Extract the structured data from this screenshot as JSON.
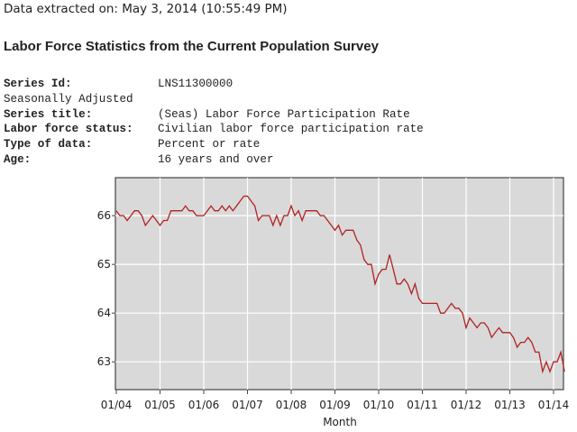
{
  "header": {
    "extracted": "Data extracted on: May 3, 2014 (10:55:49 PM)",
    "title": "Labor Force Statistics from the Current Population Survey"
  },
  "meta": {
    "rows": [
      {
        "label": "Series Id:",
        "value": "LNS11300000"
      },
      {
        "label": "Seasonally Adjusted",
        "value": ""
      },
      {
        "label": "Series title:",
        "value": "(Seas) Labor Force Participation Rate"
      },
      {
        "label": "Labor force status:",
        "value": "Civilian labor force participation rate"
      },
      {
        "label": "Type of data:",
        "value": "Percent or rate"
      },
      {
        "label": "Age:",
        "value": "16 years and over"
      }
    ]
  },
  "chart_data": {
    "type": "line",
    "xlabel": "Month",
    "ylabel": "",
    "x_start": "01/04",
    "x_end": "04/14",
    "x_ticks": [
      "01/04",
      "01/05",
      "01/06",
      "01/07",
      "01/08",
      "01/09",
      "01/10",
      "01/11",
      "01/12",
      "01/13",
      "01/14"
    ],
    "y_ticks": [
      66,
      65,
      64,
      63
    ],
    "ylim": [
      62.43,
      66.78
    ],
    "grid": true,
    "line_color": "#b22222",
    "background": "#d9d9d9",
    "xlabel_color": "#1f4e9c",
    "values": [
      66.1,
      66.0,
      66.0,
      65.9,
      66.0,
      66.1,
      66.1,
      66.0,
      65.8,
      65.9,
      66.0,
      65.9,
      65.8,
      65.9,
      65.9,
      66.1,
      66.1,
      66.1,
      66.1,
      66.2,
      66.1,
      66.1,
      66.0,
      66.0,
      66.0,
      66.1,
      66.2,
      66.1,
      66.1,
      66.2,
      66.1,
      66.2,
      66.1,
      66.2,
      66.3,
      66.4,
      66.4,
      66.3,
      66.2,
      65.9,
      66.0,
      66.0,
      66.0,
      65.8,
      66.0,
      65.8,
      66.0,
      66.0,
      66.2,
      66.0,
      66.1,
      65.9,
      66.1,
      66.1,
      66.1,
      66.1,
      66.0,
      66.0,
      65.9,
      65.8,
      65.7,
      65.8,
      65.6,
      65.7,
      65.7,
      65.7,
      65.5,
      65.4,
      65.1,
      65.0,
      65.0,
      64.6,
      64.8,
      64.9,
      64.9,
      65.2,
      64.9,
      64.6,
      64.6,
      64.7,
      64.6,
      64.4,
      64.6,
      64.3,
      64.2,
      64.2,
      64.2,
      64.2,
      64.2,
      64.0,
      64.0,
      64.1,
      64.2,
      64.1,
      64.1,
      64.0,
      63.7,
      63.9,
      63.8,
      63.7,
      63.8,
      63.8,
      63.7,
      63.5,
      63.6,
      63.7,
      63.6,
      63.6,
      63.6,
      63.5,
      63.3,
      63.4,
      63.4,
      63.5,
      63.4,
      63.2,
      63.2,
      62.8,
      63.0,
      62.8,
      63.0,
      63.0,
      63.2,
      62.8
    ]
  }
}
